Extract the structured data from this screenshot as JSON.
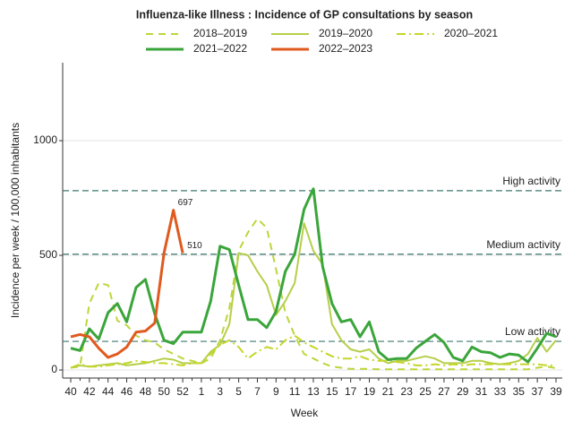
{
  "chart_data": {
    "type": "line",
    "title": "Influenza-like Illness : Incidence of GP consultations by season",
    "x_label": "Week",
    "y_label": "Incidence per week / 100,000 inhabitants",
    "categories": [
      "40",
      null,
      "42",
      null,
      "44",
      null,
      "46",
      null,
      "48",
      null,
      "50",
      null,
      "52",
      null,
      "1",
      null,
      "3",
      null,
      "5",
      null,
      "7",
      null,
      "9",
      null,
      "11",
      null,
      "13",
      null,
      "15",
      null,
      "17",
      null,
      "19",
      null,
      "21",
      null,
      "23",
      null,
      "25",
      null,
      "27",
      null,
      "29",
      null,
      "31",
      null,
      "33",
      null,
      "35",
      null,
      "37",
      null,
      "39"
    ],
    "ylim": [
      -35,
      1340
    ],
    "yticks": [
      0,
      500,
      1000
    ],
    "grid": true,
    "reference_lines": [
      {
        "label": "High activity",
        "value": 782
      },
      {
        "label": "Medium activity",
        "value": 505
      },
      {
        "label": "Low activity",
        "value": 125
      }
    ],
    "series": [
      {
        "name": "2018–2019",
        "color": "#bcd63a",
        "line_style": "dashed",
        "line_width": 2,
        "values": [
          10,
          15,
          290,
          380,
          370,
          215,
          195,
          150,
          130,
          120,
          90,
          70,
          50,
          40,
          30,
          50,
          130,
          270,
          520,
          600,
          660,
          620,
          440,
          250,
          150,
          70,
          50,
          30,
          15,
          10,
          5,
          5,
          5,
          3,
          3,
          3,
          3,
          3,
          3,
          3,
          3,
          3,
          3,
          3,
          3,
          3,
          3,
          3,
          3,
          3,
          10,
          15,
          8
        ]
      },
      {
        "name": "2019–2020",
        "color": "#b5cf4a",
        "line_style": "solid",
        "line_width": 2,
        "values": [
          10,
          20,
          15,
          20,
          25,
          30,
          20,
          25,
          30,
          40,
          50,
          45,
          30,
          30,
          30,
          80,
          110,
          200,
          510,
          500,
          430,
          370,
          240,
          300,
          380,
          640,
          520,
          460,
          200,
          130,
          90,
          80,
          90,
          50,
          30,
          40,
          40,
          50,
          60,
          50,
          30,
          30,
          30,
          40,
          40,
          30,
          25,
          30,
          40,
          70,
          140,
          80,
          130
        ]
      },
      {
        "name": "2020–2021",
        "color": "#c5d528",
        "line_style": "dashdot",
        "line_width": 2,
        "values": [
          10,
          25,
          15,
          15,
          20,
          25,
          30,
          40,
          35,
          30,
          30,
          25,
          20,
          30,
          30,
          70,
          110,
          130,
          100,
          50,
          80,
          100,
          90,
          130,
          150,
          120,
          100,
          80,
          60,
          50,
          50,
          60,
          45,
          40,
          40,
          35,
          30,
          20,
          20,
          25,
          20,
          25,
          20,
          25,
          25,
          25,
          25,
          25,
          25,
          25,
          25,
          20,
          20
        ]
      },
      {
        "name": "2021–2022",
        "color": "#3aa53a",
        "line_style": "solid",
        "line_width": 3,
        "values": [
          95,
          85,
          180,
          135,
          250,
          290,
          210,
          360,
          395,
          245,
          130,
          115,
          165,
          165,
          165,
          300,
          540,
          525,
          370,
          220,
          220,
          185,
          255,
          430,
          505,
          700,
          790,
          450,
          290,
          210,
          220,
          145,
          210,
          80,
          45,
          50,
          50,
          95,
          125,
          155,
          120,
          55,
          40,
          100,
          80,
          75,
          55,
          70,
          65,
          35,
          95,
          160,
          145
        ]
      },
      {
        "name": "2022–2023",
        "color": "#e05a1f",
        "line_style": "solid",
        "line_width": 3,
        "data_labels": true,
        "values": [
          145,
          155,
          145,
          95,
          55,
          70,
          100,
          165,
          170,
          205,
          510,
          697,
          510,
          null,
          null,
          null,
          null,
          null,
          null,
          null,
          null,
          null,
          null,
          null,
          null,
          null,
          null,
          null,
          null,
          null,
          null,
          null,
          null,
          null,
          null,
          null,
          null,
          null,
          null,
          null,
          null,
          null,
          null,
          null,
          null,
          null,
          null,
          null,
          null,
          null,
          null,
          null,
          null
        ]
      }
    ]
  }
}
